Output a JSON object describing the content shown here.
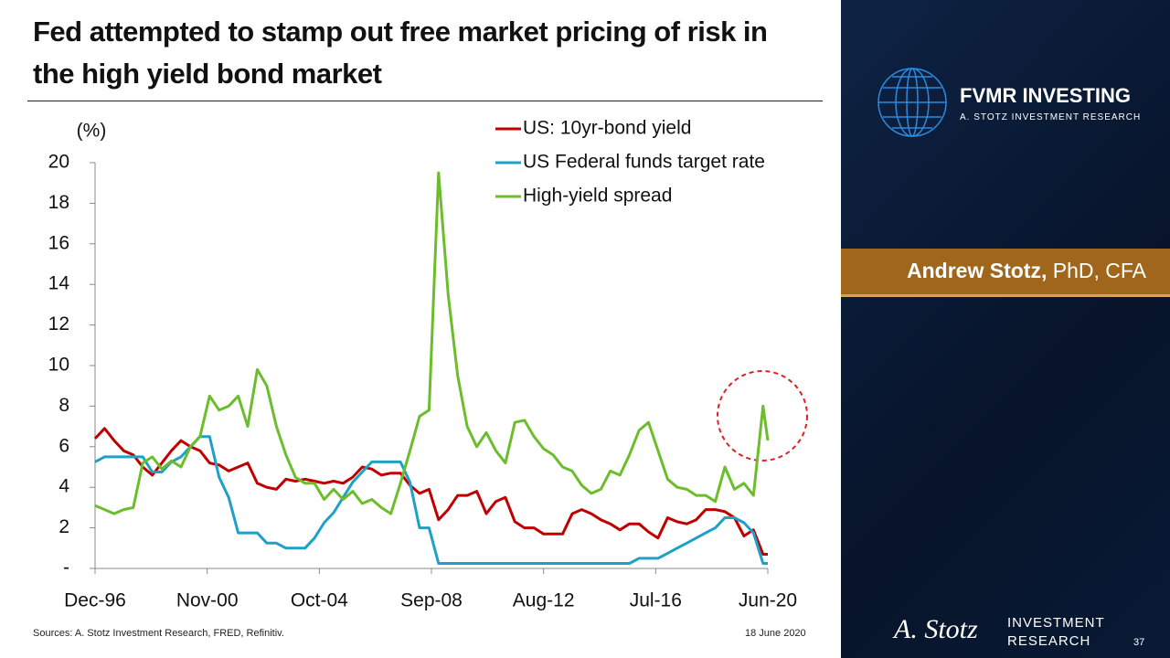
{
  "slide": {
    "title": "Fed attempted to stamp out free market pricing of risk in the high yield bond market",
    "brand": "FVMR INVESTING",
    "brand_sub": "A. STOTZ INVESTMENT RESEARCH",
    "author_name": "Andrew Stotz,",
    "author_credentials": "PhD, CFA",
    "source": "Sources: A. Stotz Investment Research, FRED, Refinitiv.",
    "date": "18 June 2020",
    "signature": "A. Stotz",
    "footer_brand_1": "INVESTMENT",
    "footer_brand_2": "RESEARCH",
    "page_number": "37"
  },
  "chart_data": {
    "type": "line",
    "y_label": "(%)",
    "legend": "top-right",
    "grid": false,
    "x": [
      "1996-12",
      "1997-04",
      "1997-08",
      "1997-12",
      "1998-04",
      "1998-08",
      "1998-12",
      "1999-04",
      "1999-08",
      "1999-12",
      "2000-04",
      "2000-08",
      "2000-12",
      "2001-04",
      "2001-08",
      "2001-12",
      "2002-04",
      "2002-08",
      "2002-12",
      "2003-04",
      "2003-08",
      "2003-12",
      "2004-04",
      "2004-08",
      "2004-12",
      "2005-04",
      "2005-08",
      "2005-12",
      "2006-04",
      "2006-08",
      "2006-12",
      "2007-04",
      "2007-08",
      "2007-12",
      "2008-04",
      "2008-08",
      "2008-12",
      "2009-04",
      "2009-08",
      "2009-12",
      "2010-04",
      "2010-08",
      "2010-12",
      "2011-04",
      "2011-08",
      "2011-12",
      "2012-04",
      "2012-08",
      "2012-12",
      "2013-04",
      "2013-08",
      "2013-12",
      "2014-04",
      "2014-08",
      "2014-12",
      "2015-04",
      "2015-08",
      "2015-12",
      "2016-04",
      "2016-08",
      "2016-12",
      "2017-04",
      "2017-08",
      "2017-12",
      "2018-04",
      "2018-08",
      "2018-12",
      "2019-04",
      "2019-08",
      "2019-12",
      "2020-04",
      "2020-06"
    ],
    "xlim": [
      "1996-12",
      "2020-06"
    ],
    "xticks": [
      {
        "value": "1996-12",
        "label": "Dec-96"
      },
      {
        "value": "2000-11",
        "label": "Nov-00"
      },
      {
        "value": "2004-10",
        "label": "Oct-04"
      },
      {
        "value": "2008-09",
        "label": "Sep-08"
      },
      {
        "value": "2012-08",
        "label": "Aug-12"
      },
      {
        "value": "2016-07",
        "label": "Jul-16"
      },
      {
        "value": "2020-06",
        "label": "Jun-20"
      }
    ],
    "ylim": [
      0,
      20
    ],
    "yticks": [
      {
        "value": 0,
        "label": "-"
      },
      2,
      4,
      6,
      8,
      10,
      12,
      14,
      16,
      18,
      20
    ],
    "series": [
      {
        "name": "US: 10yr-bond yield",
        "color": "#c00000",
        "values": [
          6.4,
          6.9,
          6.3,
          5.8,
          5.6,
          5.0,
          4.6,
          5.2,
          5.8,
          6.3,
          6.0,
          5.8,
          5.2,
          5.1,
          4.8,
          5.0,
          5.2,
          4.2,
          4.0,
          3.9,
          4.4,
          4.3,
          4.4,
          4.3,
          4.2,
          4.3,
          4.2,
          4.5,
          5.0,
          4.9,
          4.6,
          4.7,
          4.7,
          4.1,
          3.7,
          3.9,
          2.4,
          2.9,
          3.6,
          3.6,
          3.8,
          2.7,
          3.3,
          3.5,
          2.3,
          2.0,
          2.0,
          1.7,
          1.7,
          1.7,
          2.7,
          2.9,
          2.7,
          2.4,
          2.2,
          1.9,
          2.2,
          2.2,
          1.8,
          1.5,
          2.5,
          2.3,
          2.2,
          2.4,
          2.9,
          2.9,
          2.8,
          2.5,
          1.6,
          1.9,
          0.7,
          0.7
        ]
      },
      {
        "name": "US Federal funds target rate",
        "color": "#1ea0c8",
        "values": [
          5.25,
          5.5,
          5.5,
          5.5,
          5.5,
          5.5,
          4.75,
          4.75,
          5.25,
          5.5,
          6.0,
          6.5,
          6.5,
          4.5,
          3.5,
          1.75,
          1.75,
          1.75,
          1.25,
          1.25,
          1.0,
          1.0,
          1.0,
          1.5,
          2.25,
          2.75,
          3.5,
          4.25,
          4.75,
          5.25,
          5.25,
          5.25,
          5.25,
          4.25,
          2.0,
          2.0,
          0.25,
          0.25,
          0.25,
          0.25,
          0.25,
          0.25,
          0.25,
          0.25,
          0.25,
          0.25,
          0.25,
          0.25,
          0.25,
          0.25,
          0.25,
          0.25,
          0.25,
          0.25,
          0.25,
          0.25,
          0.25,
          0.5,
          0.5,
          0.5,
          0.75,
          1.0,
          1.25,
          1.5,
          1.75,
          2.0,
          2.5,
          2.5,
          2.25,
          1.75,
          0.25,
          0.25
        ]
      },
      {
        "name": "High-yield spread",
        "color": "#6cbd2b",
        "values": [
          3.1,
          2.9,
          2.7,
          2.9,
          3.0,
          5.2,
          5.5,
          4.9,
          5.3,
          5.0,
          6.0,
          6.5,
          8.5,
          7.8,
          8.0,
          8.5,
          7.0,
          9.8,
          9.0,
          7.0,
          5.6,
          4.5,
          4.2,
          4.2,
          3.4,
          3.9,
          3.4,
          3.8,
          3.2,
          3.4,
          3.0,
          2.7,
          4.2,
          5.8,
          7.5,
          7.8,
          19.5,
          13.5,
          9.5,
          7.0,
          6.0,
          6.7,
          5.8,
          5.2,
          7.2,
          7.3,
          6.5,
          5.9,
          5.6,
          5.0,
          4.8,
          4.1,
          3.7,
          3.9,
          4.8,
          4.6,
          5.6,
          6.8,
          7.2,
          5.8,
          4.4,
          4.0,
          3.9,
          3.6,
          3.6,
          3.3,
          5.0,
          3.9,
          4.2,
          3.6,
          8.0,
          6.3
        ]
      }
    ]
  }
}
